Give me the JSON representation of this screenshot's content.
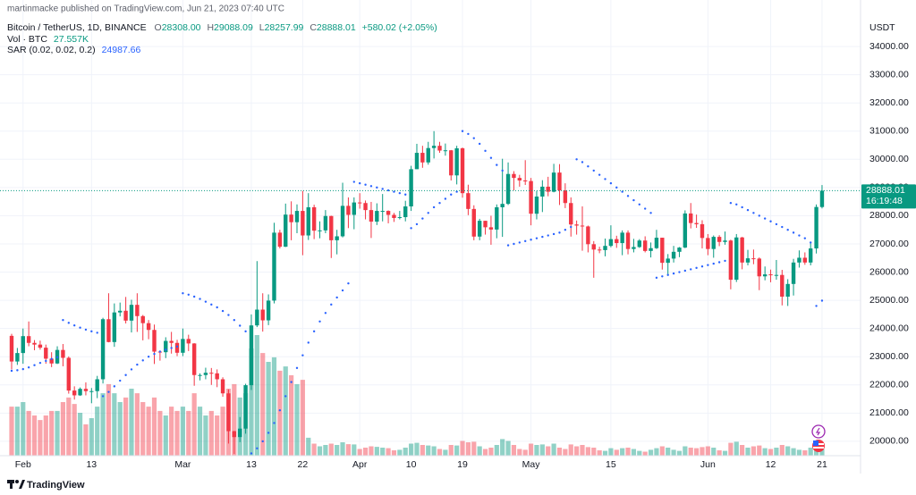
{
  "header": {
    "published": "martinmacke published on TradingView.com, Jun 21, 2023 07:40 UTC",
    "symbol": "Bitcoin / TetherUS, 1D, BINANCE",
    "ohlc": [
      {
        "label": "O",
        "value": "28308.00"
      },
      {
        "label": "H",
        "value": "29088.09"
      },
      {
        "label": "L",
        "value": "28257.99"
      },
      {
        "label": "C",
        "value": "28888.01"
      }
    ],
    "change": "+580.02 (+2.05%)",
    "volume_title": "Vol · BTC",
    "volume_value": "27.557K",
    "sar_title": "SAR (0.02, 0.02, 0.2)",
    "sar_value": "24987.66",
    "currency": "USDT",
    "price_tag": "28888.01",
    "countdown": "16:19:48",
    "brand": "TradingView"
  },
  "chart_data": {
    "type": "candlestick",
    "categories": [
      null,
      null,
      "Feb",
      null,
      null,
      null,
      null,
      null,
      null,
      null,
      null,
      null,
      null,
      null,
      "13",
      null,
      null,
      null,
      null,
      null,
      null,
      null,
      null,
      null,
      null,
      null,
      null,
      null,
      null,
      null,
      "Mar",
      null,
      null,
      null,
      null,
      null,
      null,
      null,
      null,
      null,
      null,
      null,
      "13",
      null,
      null,
      null,
      null,
      null,
      null,
      null,
      null,
      "22",
      null,
      null,
      null,
      null,
      null,
      null,
      null,
      null,
      null,
      "Apr",
      null,
      null,
      null,
      null,
      null,
      null,
      null,
      null,
      "10",
      null,
      null,
      null,
      null,
      null,
      null,
      null,
      null,
      "19",
      null,
      null,
      null,
      null,
      null,
      null,
      null,
      null,
      null,
      null,
      null,
      "May",
      null,
      null,
      null,
      null,
      null,
      null,
      null,
      null,
      null,
      null,
      null,
      null,
      null,
      "15",
      null,
      null,
      null,
      null,
      null,
      null,
      null,
      null,
      null,
      null,
      null,
      null,
      null,
      null,
      null,
      null,
      "Jun",
      null,
      null,
      null,
      null,
      null,
      null,
      null,
      null,
      null,
      null,
      "12",
      null,
      null,
      null,
      null,
      null,
      null,
      null,
      null,
      "21"
    ],
    "open": [
      23740,
      22830,
      23130,
      23730,
      23490,
      23430,
      23320,
      22930,
      22760,
      23240,
      22960,
      21800,
      21630,
      21860,
      21780,
      21780,
      22200,
      24330,
      23520,
      24570,
      24630,
      24280,
      24840,
      24440,
      24190,
      23950,
      23180,
      23160,
      23560,
      23490,
      23140,
      23630,
      23470,
      22350,
      22350,
      22430,
      22410,
      22200,
      21700,
      20360,
      20150,
      20450,
      21990,
      24110,
      24670,
      24290,
      24990,
      27400,
      26900,
      28040,
      27770,
      28170,
      27300,
      28300,
      27470,
      27480,
      27990,
      27130,
      27270,
      28350,
      28030,
      28470,
      28450,
      28200,
      27790,
      28170,
      28170,
      28030,
      27920,
      27950,
      28330,
      29650,
      30230,
      29890,
      30400,
      30480,
      30310,
      30320,
      29430,
      30390,
      28800,
      28240,
      27260,
      27820,
      27590,
      27510,
      28300,
      28420,
      29480,
      29340,
      29250,
      29230,
      28070,
      28680,
      29030,
      28850,
      29530,
      28900,
      28450,
      27690,
      27650,
      27620,
      26990,
      26800,
      26780,
      26930,
      27170,
      27030,
      27400,
      26820,
      26890,
      27120,
      26750,
      26850,
      27220,
      26330,
      26480,
      26720,
      26870,
      28080,
      27740,
      27700,
      27210,
      26820,
      27250,
      27070,
      27120,
      25730,
      27230,
      26340,
      26490,
      26480,
      25850,
      25920,
      25900,
      25900,
      25130,
      25580,
      26340,
      26510,
      26340,
      26840,
      28308
    ],
    "high": [
      23810,
      23310,
      24000,
      24250,
      23590,
      23570,
      23430,
      23160,
      23370,
      23450,
      23010,
      21950,
      21910,
      22090,
      21890,
      22320,
      24380,
      25250,
      24890,
      24920,
      25120,
      25020,
      25250,
      24480,
      24300,
      24140,
      23220,
      23690,
      23880,
      23600,
      24000,
      23780,
      23480,
      22410,
      22610,
      22600,
      22550,
      22270,
      21840,
      20370,
      20860,
      22040,
      24500,
      26390,
      25250,
      25210,
      27750,
      27500,
      28430,
      28510,
      28400,
      28880,
      28800,
      28390,
      27800,
      28200,
      28000,
      27500,
      29170,
      28650,
      28650,
      28800,
      28540,
      28490,
      28440,
      28770,
      28190,
      28100,
      28170,
      28530,
      29770,
      30550,
      30480,
      30620,
      31000,
      30620,
      30560,
      30330,
      30480,
      30420,
      29100,
      28370,
      27890,
      27820,
      28000,
      28400,
      30020,
      29890,
      29580,
      29450,
      29970,
      29340,
      28880,
      29260,
      29380,
      29840,
      29830,
      29150,
      28650,
      27830,
      28330,
      27650,
      27100,
      26900,
      27190,
      27660,
      27290,
      27480,
      27480,
      27180,
      27170,
      27270,
      27050,
      27500,
      27220,
      26640,
      26930,
      26890,
      28190,
      28450,
      28040,
      27840,
      27350,
      27300,
      27310,
      27440,
      27150,
      27350,
      27250,
      26790,
      26800,
      26520,
      26200,
      26090,
      26430,
      26080,
      25750,
      26470,
      26770,
      26700,
      27030,
      28400,
      29088.09
    ],
    "low": [
      22550,
      22710,
      22750,
      23370,
      23230,
      23250,
      22750,
      22630,
      22740,
      22660,
      21690,
      21480,
      21610,
      21630,
      21350,
      21530,
      22050,
      23510,
      23350,
      24430,
      24180,
      23860,
      23880,
      23580,
      23620,
      22740,
      22860,
      22950,
      23110,
      23020,
      23020,
      23200,
      21970,
      22160,
      22200,
      22000,
      21920,
      21580,
      19920,
      19550,
      19970,
      20270,
      21820,
      24050,
      23890,
      24120,
      24890,
      26840,
      26890,
      27130,
      27380,
      26600,
      27140,
      27170,
      27200,
      27380,
      26500,
      26630,
      27230,
      27560,
      27520,
      28250,
      27870,
      27210,
      27670,
      27800,
      27730,
      27780,
      27870,
      27800,
      28170,
      29650,
      29700,
      29810,
      30030,
      30230,
      30130,
      29250,
      29110,
      28640,
      28020,
      27130,
      27130,
      27330,
      26970,
      27200,
      27250,
      28380,
      28900,
      29030,
      29090,
      27660,
      27870,
      28130,
      28690,
      28830,
      28380,
      28270,
      27260,
      27330,
      26760,
      26700,
      25800,
      26670,
      26560,
      26880,
      26860,
      26600,
      26630,
      26700,
      26860,
      26700,
      26520,
      26820,
      26090,
      25870,
      26340,
      26530,
      26850,
      27550,
      27570,
      26840,
      26600,
      26510,
      26920,
      26970,
      25390,
      25650,
      26100,
      26240,
      26280,
      25360,
      25710,
      25640,
      25730,
      24820,
      24800,
      25170,
      26160,
      26260,
      26240,
      26660,
      28257.99
    ],
    "close": [
      22830,
      23130,
      23730,
      23490,
      23430,
      23320,
      22930,
      22760,
      23240,
      22960,
      21800,
      21630,
      21860,
      21780,
      21780,
      22200,
      24330,
      23520,
      24570,
      24630,
      24280,
      24840,
      24440,
      24190,
      23950,
      23180,
      23160,
      23560,
      23490,
      23140,
      23630,
      23470,
      22350,
      22350,
      22430,
      22410,
      22200,
      21700,
      20360,
      20150,
      20450,
      21990,
      24110,
      24670,
      24290,
      24990,
      27400,
      26900,
      28040,
      27770,
      28170,
      27300,
      28300,
      27470,
      27480,
      27990,
      27130,
      27270,
      28350,
      28030,
      28470,
      28450,
      28200,
      27790,
      28170,
      28170,
      28030,
      27920,
      27950,
      28330,
      29650,
      30230,
      29890,
      30400,
      30480,
      30310,
      30320,
      29430,
      30390,
      28800,
      28240,
      27260,
      27820,
      27590,
      27510,
      28300,
      28420,
      29480,
      29340,
      29250,
      29230,
      28070,
      28680,
      29030,
      28850,
      29530,
      28900,
      28450,
      27690,
      27650,
      27620,
      26990,
      26800,
      26780,
      26930,
      27170,
      27030,
      27400,
      26820,
      26890,
      27120,
      26750,
      26850,
      27220,
      26330,
      26480,
      26720,
      26870,
      28080,
      27740,
      27700,
      27210,
      26820,
      27250,
      27070,
      27120,
      25730,
      27230,
      26340,
      26490,
      26480,
      25850,
      25920,
      25900,
      25900,
      25130,
      25580,
      26340,
      26510,
      26340,
      26840,
      28310,
      28888.01
    ],
    "volume": [
      183000,
      183000,
      200000,
      167000,
      150000,
      133000,
      150000,
      167000,
      167000,
      200000,
      217000,
      193000,
      160000,
      117000,
      140000,
      183000,
      233000,
      267000,
      233000,
      200000,
      217000,
      250000,
      233000,
      200000,
      183000,
      217000,
      167000,
      150000,
      183000,
      167000,
      183000,
      167000,
      233000,
      183000,
      150000,
      167000,
      150000,
      183000,
      250000,
      267000,
      217000,
      233000,
      400000,
      450000,
      383000,
      350000,
      367000,
      317000,
      333000,
      300000,
      267000,
      283000,
      67000,
      45000,
      35000,
      40000,
      45000,
      40000,
      50000,
      43000,
      42000,
      25000,
      30000,
      35000,
      33000,
      30000,
      28000,
      20000,
      22000,
      30000,
      45000,
      48000,
      40000,
      38000,
      35000,
      25000,
      22000,
      40000,
      38000,
      55000,
      50000,
      52000,
      35000,
      25000,
      30000,
      40000,
      62000,
      55000,
      40000,
      25000,
      22000,
      45000,
      40000,
      42000,
      35000,
      45000,
      30000,
      25000,
      42000,
      35000,
      40000,
      32000,
      30000,
      20000,
      18000,
      28000,
      22000,
      28000,
      30000,
      25000,
      18000,
      15000,
      22000,
      28000,
      35000,
      30000,
      22000,
      18000,
      35000,
      30000,
      28000,
      32000,
      35000,
      30000,
      20000,
      18000,
      48000,
      52000,
      40000,
      30000,
      35000,
      38000,
      28000,
      25000,
      30000,
      40000,
      35000,
      28000,
      22000,
      20000,
      30000,
      50000,
      27557
    ],
    "sar": [
      22500,
      22520,
      22560,
      22620,
      22700,
      22780,
      22850,
      22920,
      22980,
      24300,
      24200,
      24110,
      24030,
      23960,
      23900,
      23850,
      21600,
      21750,
      21950,
      22150,
      22350,
      22550,
      22720,
      22870,
      23000,
      23100,
      23180,
      23250,
      23310,
      23360,
      25250,
      25200,
      25130,
      25050,
      24950,
      24850,
      24750,
      24620,
      24480,
      24300,
      24100,
      23900,
      19570,
      19750,
      20000,
      20300,
      20650,
      21100,
      21600,
      22100,
      22600,
      23050,
      23500,
      23900,
      24250,
      24550,
      24850,
      25100,
      25350,
      25600,
      29200,
      29150,
      29100,
      29050,
      29000,
      28950,
      28900,
      28850,
      28800,
      28750,
      27560,
      27700,
      27900,
      28100,
      28300,
      28450,
      28600,
      28750,
      28850,
      31000,
      30900,
      30750,
      30550,
      30300,
      30050,
      29800,
      29600,
      26950,
      27000,
      27050,
      27100,
      27150,
      27200,
      27250,
      27300,
      27350,
      27400,
      27500,
      27600,
      30000,
      29900,
      29750,
      29600,
      29450,
      29300,
      29150,
      29000,
      28850,
      28700,
      28550,
      28400,
      28250,
      28100,
      25800,
      25850,
      25900,
      25950,
      26000,
      26050,
      26100,
      26150,
      26200,
      26250,
      26300,
      26350,
      26400,
      28450,
      28400,
      28300,
      28200,
      28100,
      28000,
      27900,
      27800,
      27700,
      27600,
      27500,
      27400,
      27300,
      27200,
      27050,
      24800,
      24987.66
    ],
    "up_color": "#089981",
    "down_color": "#f23645",
    "sar_color": "#2962ff",
    "ylim": [
      19490,
      35650
    ],
    "yticks": [
      {
        "value": 20000,
        "label": "20000.00"
      },
      {
        "value": 21000,
        "label": "21000.00"
      },
      {
        "value": 22000,
        "label": "22000.00"
      },
      {
        "value": 23000,
        "label": "23000.00"
      },
      {
        "value": 24000,
        "label": "24000.00"
      },
      {
        "value": 25000,
        "label": "25000.00"
      },
      {
        "value": 26000,
        "label": "26000.00"
      },
      {
        "value": 27000,
        "label": "27000.00"
      },
      {
        "value": 28000,
        "label": "28000.00"
      },
      {
        "value": 29000,
        "label": "29000.00"
      },
      {
        "value": 30000,
        "label": "30000.00"
      },
      {
        "value": 31000,
        "label": "31000.00"
      },
      {
        "value": 32000,
        "label": "32000.00"
      },
      {
        "value": 33000,
        "label": "33000.00"
      },
      {
        "value": 34000,
        "label": "34000.00"
      }
    ],
    "grid": true
  }
}
